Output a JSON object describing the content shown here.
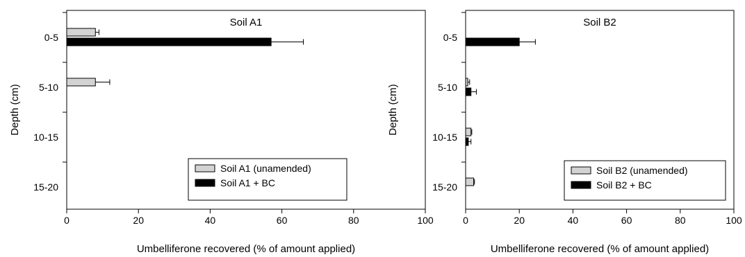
{
  "chart_data": [
    {
      "type": "bar",
      "orientation": "horizontal",
      "title": "Soil A1",
      "xlabel": "Umbelliferone recovered (% of amount applied)",
      "ylabel": "Depth (cm)",
      "xlim": [
        0,
        100
      ],
      "xticks": [
        "0",
        "20",
        "40",
        "60",
        "80",
        "100"
      ],
      "categories": [
        "0-5",
        "5-10",
        "10-15",
        "15-20"
      ],
      "grid": false,
      "legend_position": "bottom-right",
      "series": [
        {
          "name": "Soil A1 (unamended)",
          "color": "#d3d3d3",
          "values": [
            8,
            8,
            null,
            null
          ],
          "errors": [
            1,
            4,
            null,
            null
          ]
        },
        {
          "name": "Soil A1 + BC",
          "color": "#000000",
          "values": [
            57,
            null,
            null,
            null
          ],
          "errors": [
            9,
            null,
            null,
            null
          ]
        }
      ]
    },
    {
      "type": "bar",
      "orientation": "horizontal",
      "title": "Soil B2",
      "xlabel": "Umbelliferone recovered (% of amount applied)",
      "ylabel": "Depth (cm)",
      "xlim": [
        0,
        100
      ],
      "xticks": [
        "0",
        "20",
        "40",
        "60",
        "80",
        "100"
      ],
      "categories": [
        "0-5",
        "5-10",
        "10-15",
        "15-20"
      ],
      "grid": false,
      "legend_position": "bottom-right",
      "series": [
        {
          "name": "Soil B2 (unamended)",
          "color": "#d3d3d3",
          "values": [
            null,
            0.8,
            2,
            3
          ],
          "errors": [
            null,
            0.7,
            0.3,
            0.3
          ]
        },
        {
          "name": "Soil B2 + BC",
          "color": "#000000",
          "values": [
            20,
            2,
            1,
            null
          ],
          "errors": [
            6,
            2,
            1,
            null
          ]
        }
      ]
    }
  ]
}
